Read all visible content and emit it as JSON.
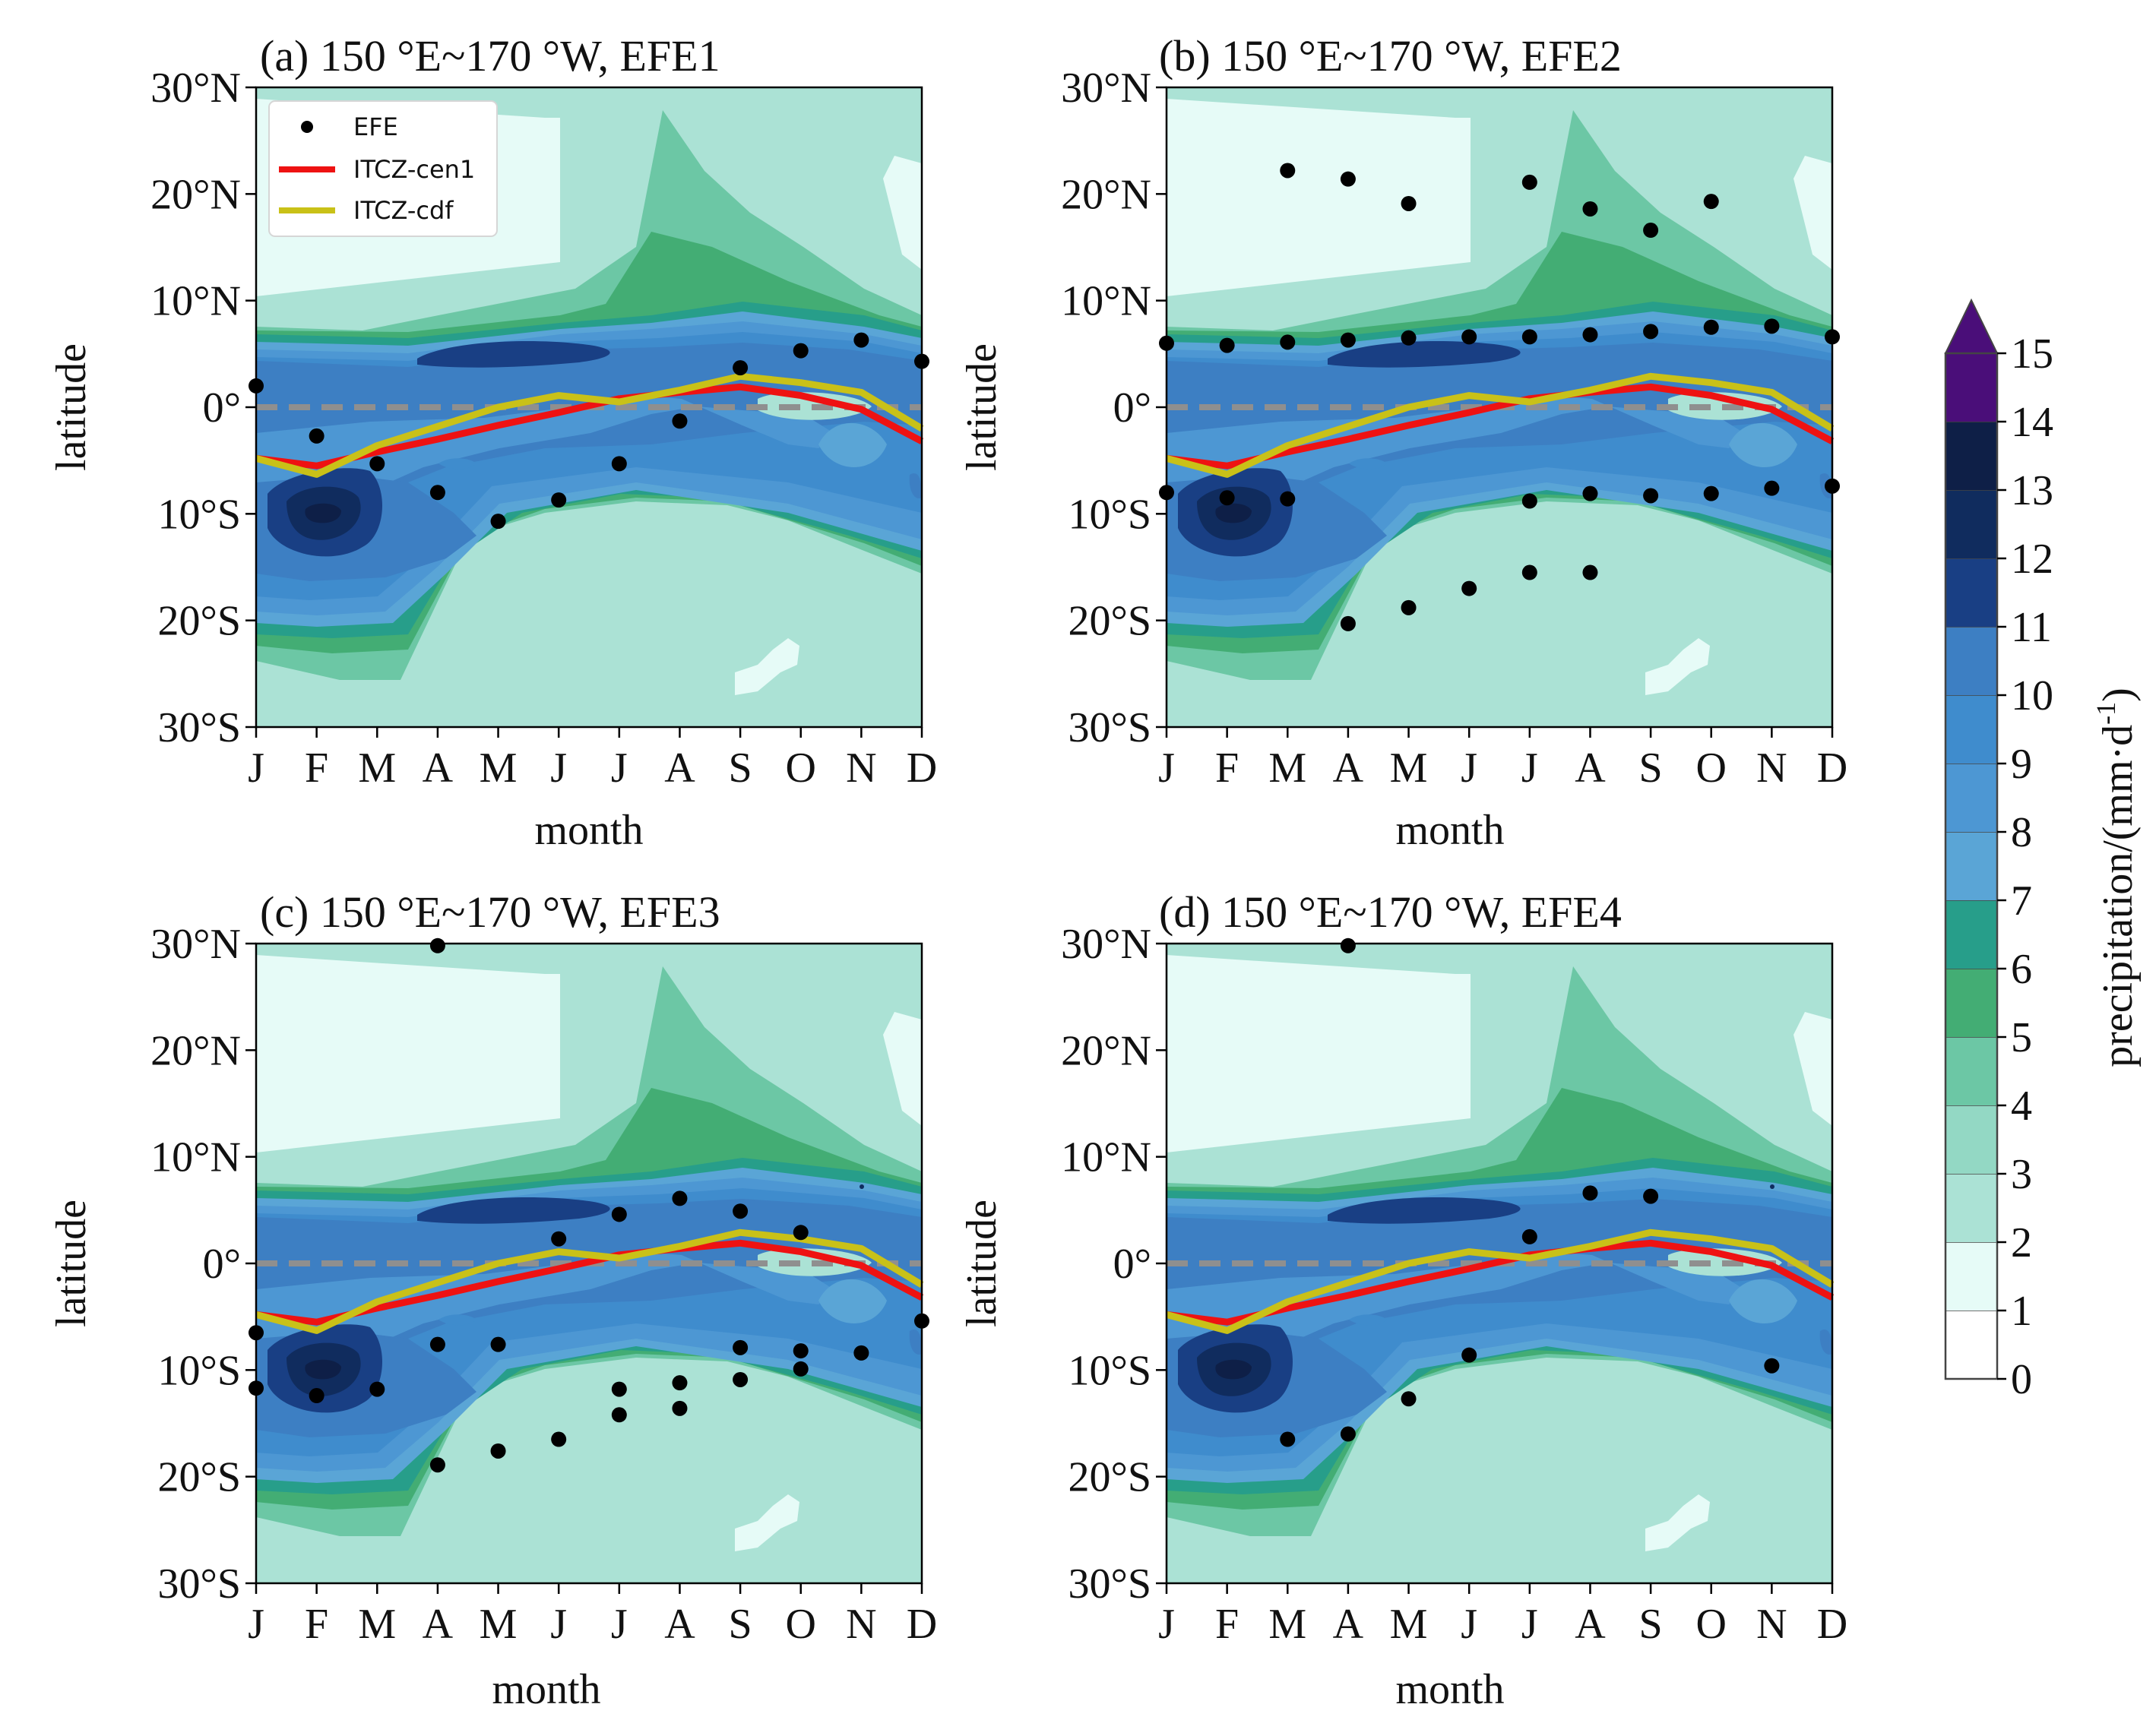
{
  "colors": {
    "levels": [
      "#ffffff",
      "#e6fbf7",
      "#abe2d5",
      "#93d8c4",
      "#6cc7a5",
      "#43ad74",
      "#279e8a",
      "#5aa5d6",
      "#4d97d3",
      "#3f8ccd",
      "#3d7fc3",
      "#193f84",
      "#102c5e",
      "#0e1f47",
      "#4a0e79"
    ],
    "zero_line": "#8f8f8f",
    "efe_dot": "#000000",
    "itcz_cen1": "#ee1212",
    "itcz_cdf": "#c9c118"
  },
  "month_ticks": [
    "J",
    "F",
    "M",
    "A",
    "M",
    "J",
    "J",
    "A",
    "S",
    "O",
    "N",
    "D"
  ],
  "lat_ticks": [
    "30°S",
    "20°S",
    "10°S",
    "0°",
    "10°N",
    "20°N",
    "30°N"
  ],
  "lat_tick_values": [
    -30,
    -20,
    -10,
    0,
    10,
    20,
    30
  ],
  "xlabel": "month",
  "ylabel": "latitude",
  "colorbar": {
    "label": "precipitation/(mm·d",
    "label_sup": "-1",
    "label_close": ")",
    "ticks": [
      "0",
      "1",
      "2",
      "3",
      "4",
      "5",
      "6",
      "7",
      "8",
      "9",
      "10",
      "11",
      "12",
      "13",
      "14",
      "15"
    ]
  },
  "legend": {
    "location": "upper left",
    "items": [
      {
        "kind": "dot",
        "label": "EFE"
      },
      {
        "kind": "line",
        "color": "#ee1212",
        "label": "ITCZ-cen1"
      },
      {
        "kind": "line",
        "color": "#c9c118",
        "label": "ITCZ-cdf"
      }
    ]
  },
  "chart_data": [
    {
      "type": "scatter",
      "title": "(a) 150 °E~170 °W, EFE1",
      "xlabel": "month",
      "ylabel": "latitude",
      "x_categories": [
        "J",
        "F",
        "M",
        "A",
        "M",
        "J",
        "J",
        "A",
        "S",
        "O",
        "N",
        "D"
      ],
      "ylim": [
        -30,
        30
      ],
      "series": [
        {
          "name": "EFE",
          "values": [
            [
              1,
              2
            ],
            [
              2,
              -2.7
            ],
            [
              3,
              -5.3
            ],
            [
              4,
              -8
            ],
            [
              5,
              -10.7
            ],
            [
              6,
              -8.7
            ],
            [
              7,
              -5.3
            ],
            [
              8,
              -1.3
            ],
            [
              9,
              3.7
            ],
            [
              10,
              5.3
            ],
            [
              11,
              6.3
            ],
            [
              12,
              4.3
            ]
          ]
        },
        {
          "name": "ITCZ-cen1",
          "values": [
            [
              1,
              -4.8
            ],
            [
              2,
              -5.5
            ],
            [
              3,
              -4.2
            ],
            [
              4,
              -3
            ],
            [
              5,
              -1.7
            ],
            [
              6,
              -0.5
            ],
            [
              7,
              0.8
            ],
            [
              8,
              1.4
            ],
            [
              9,
              1.9
            ],
            [
              10,
              1.1
            ],
            [
              11,
              -0.2
            ],
            [
              12,
              -3.2
            ]
          ]
        },
        {
          "name": "ITCZ-cdf",
          "values": [
            [
              1,
              -4.8
            ],
            [
              2,
              -6.3
            ],
            [
              3,
              -3.6
            ],
            [
              4,
              -1.8
            ],
            [
              5,
              0
            ],
            [
              6,
              1.1
            ],
            [
              7,
              0.5
            ],
            [
              8,
              1.6
            ],
            [
              9,
              2.9
            ],
            [
              10,
              2.3
            ],
            [
              11,
              1.4
            ],
            [
              12,
              -2
            ]
          ]
        }
      ]
    },
    {
      "type": "scatter",
      "title": "(b) 150 °E~170 °W, EFE2",
      "xlabel": "month",
      "ylabel": "latitude",
      "x_categories": [
        "J",
        "F",
        "M",
        "A",
        "M",
        "J",
        "J",
        "A",
        "S",
        "O",
        "N",
        "D"
      ],
      "ylim": [
        -30,
        30
      ],
      "series": [
        {
          "name": "EFE",
          "values": [
            [
              1,
              6
            ],
            [
              2,
              5.8
            ],
            [
              3,
              6.1
            ],
            [
              4,
              6.3
            ],
            [
              5,
              6.5
            ],
            [
              6,
              6.6
            ],
            [
              7,
              6.6
            ],
            [
              8,
              6.8
            ],
            [
              9,
              7.1
            ],
            [
              10,
              7.5
            ],
            [
              11,
              7.6
            ],
            [
              12,
              6.6
            ],
            [
              3,
              22.2
            ],
            [
              4,
              21.4
            ],
            [
              5,
              19.1
            ],
            [
              7,
              21.1
            ],
            [
              8,
              18.6
            ],
            [
              9,
              16.6
            ],
            [
              10,
              19.3
            ],
            [
              1,
              -8
            ],
            [
              2,
              -8.5
            ],
            [
              3,
              -8.6
            ],
            [
              7,
              -8.8
            ],
            [
              8,
              -8.1
            ],
            [
              9,
              -8.3
            ],
            [
              10,
              -8.1
            ],
            [
              11,
              -7.6
            ],
            [
              12,
              -7.4
            ],
            [
              4,
              -20.3
            ],
            [
              5,
              -18.8
            ],
            [
              6,
              -17
            ],
            [
              7,
              -15.5
            ],
            [
              8,
              -15.5
            ]
          ]
        },
        {
          "name": "ITCZ-cen1",
          "values": [
            [
              1,
              -4.8
            ],
            [
              2,
              -5.5
            ],
            [
              3,
              -4.2
            ],
            [
              4,
              -3
            ],
            [
              5,
              -1.7
            ],
            [
              6,
              -0.5
            ],
            [
              7,
              0.8
            ],
            [
              8,
              1.4
            ],
            [
              9,
              1.9
            ],
            [
              10,
              1.1
            ],
            [
              11,
              -0.2
            ],
            [
              12,
              -3.2
            ]
          ]
        },
        {
          "name": "ITCZ-cdf",
          "values": [
            [
              1,
              -4.8
            ],
            [
              2,
              -6.3
            ],
            [
              3,
              -3.6
            ],
            [
              4,
              -1.8
            ],
            [
              5,
              0
            ],
            [
              6,
              1.1
            ],
            [
              7,
              0.5
            ],
            [
              8,
              1.6
            ],
            [
              9,
              2.9
            ],
            [
              10,
              2.3
            ],
            [
              11,
              1.4
            ],
            [
              12,
              -2
            ]
          ]
        }
      ]
    },
    {
      "type": "scatter",
      "title": "(c) 150 °E~170 °W, EFE3",
      "xlabel": "month",
      "ylabel": "latitude",
      "x_categories": [
        "J",
        "F",
        "M",
        "A",
        "M",
        "J",
        "J",
        "A",
        "S",
        "O",
        "N",
        "D"
      ],
      "ylim": [
        -30,
        30
      ],
      "series": [
        {
          "name": "EFE",
          "values": [
            [
              1,
              -6.5
            ],
            [
              1,
              -11.7
            ],
            [
              2,
              -12.4
            ],
            [
              3,
              -11.8
            ],
            [
              4,
              29.8
            ],
            [
              4,
              -7.6
            ],
            [
              4,
              -18.9
            ],
            [
              5,
              -7.6
            ],
            [
              5,
              -17.6
            ],
            [
              6,
              2.3
            ],
            [
              6,
              -16.5
            ],
            [
              7,
              4.6
            ],
            [
              7,
              -11.8
            ],
            [
              7,
              -14.2
            ],
            [
              8,
              6.1
            ],
            [
              8,
              -11.2
            ],
            [
              8,
              -13.6
            ],
            [
              9,
              4.9
            ],
            [
              9,
              -7.9
            ],
            [
              9,
              -10.9
            ],
            [
              10,
              2.9
            ],
            [
              10,
              -8.2
            ],
            [
              10,
              -9.9
            ],
            [
              11,
              -8.4
            ],
            [
              12,
              -5.4
            ]
          ]
        },
        {
          "name": "ITCZ-cen1",
          "values": [
            [
              1,
              -4.8
            ],
            [
              2,
              -5.5
            ],
            [
              3,
              -4.2
            ],
            [
              4,
              -3
            ],
            [
              5,
              -1.7
            ],
            [
              6,
              -0.5
            ],
            [
              7,
              0.8
            ],
            [
              8,
              1.4
            ],
            [
              9,
              1.9
            ],
            [
              10,
              1.1
            ],
            [
              11,
              -0.2
            ],
            [
              12,
              -3.2
            ]
          ]
        },
        {
          "name": "ITCZ-cdf",
          "values": [
            [
              1,
              -4.8
            ],
            [
              2,
              -6.3
            ],
            [
              3,
              -3.6
            ],
            [
              4,
              -1.8
            ],
            [
              5,
              0
            ],
            [
              6,
              1.1
            ],
            [
              7,
              0.5
            ],
            [
              8,
              1.6
            ],
            [
              9,
              2.9
            ],
            [
              10,
              2.3
            ],
            [
              11,
              1.4
            ],
            [
              12,
              -2
            ]
          ]
        }
      ]
    },
    {
      "type": "scatter",
      "title": "(d) 150 °E~170 °W, EFE4",
      "xlabel": "month",
      "ylabel": "latitude",
      "x_categories": [
        "J",
        "F",
        "M",
        "A",
        "M",
        "J",
        "J",
        "A",
        "S",
        "O",
        "N",
        "D"
      ],
      "ylim": [
        -30,
        30
      ],
      "series": [
        {
          "name": "EFE",
          "values": [
            [
              3,
              -16.5
            ],
            [
              4,
              29.8
            ],
            [
              4,
              -16
            ],
            [
              5,
              -12.7
            ],
            [
              6,
              -8.6
            ],
            [
              7,
              2.5
            ],
            [
              8,
              6.6
            ],
            [
              9,
              6.3
            ],
            [
              11,
              -9.6
            ]
          ]
        },
        {
          "name": "ITCZ-cen1",
          "values": [
            [
              1,
              -4.8
            ],
            [
              2,
              -5.5
            ],
            [
              3,
              -4.2
            ],
            [
              4,
              -3
            ],
            [
              5,
              -1.7
            ],
            [
              6,
              -0.5
            ],
            [
              7,
              0.8
            ],
            [
              8,
              1.4
            ],
            [
              9,
              1.9
            ],
            [
              10,
              1.1
            ],
            [
              11,
              -0.2
            ],
            [
              12,
              -3.2
            ]
          ]
        },
        {
          "name": "ITCZ-cdf",
          "values": [
            [
              1,
              -4.8
            ],
            [
              2,
              -6.3
            ],
            [
              3,
              -3.6
            ],
            [
              4,
              -1.8
            ],
            [
              5,
              0
            ],
            [
              6,
              1.1
            ],
            [
              7,
              0.5
            ],
            [
              8,
              1.6
            ],
            [
              9,
              2.9
            ],
            [
              10,
              2.3
            ],
            [
              11,
              1.4
            ],
            [
              12,
              -2
            ]
          ]
        }
      ]
    }
  ]
}
